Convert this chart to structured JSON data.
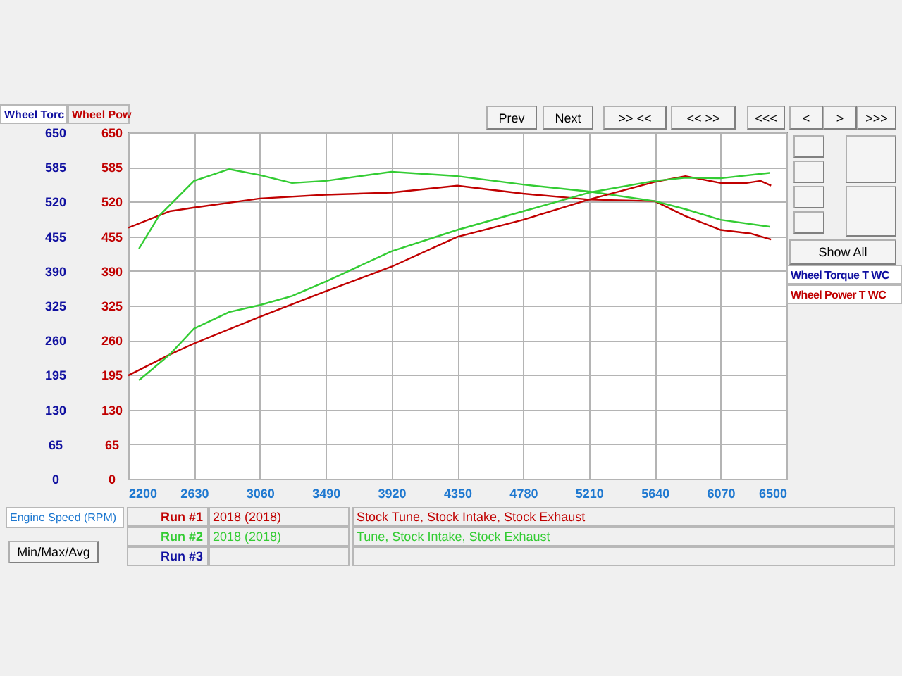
{
  "chart_data": {
    "type": "line",
    "xlabel": "Engine Speed (RPM)",
    "ylabel": "Wheel Torc",
    "y2label": "Wheel Pow",
    "xlim": [
      2200,
      6500
    ],
    "xticks": [
      2200,
      2630,
      3060,
      3490,
      3920,
      4350,
      4780,
      5210,
      5640,
      6070,
      6500
    ],
    "ylim": [
      0,
      650
    ],
    "yticks": [
      0,
      65,
      130,
      195,
      260,
      325,
      390,
      455,
      520,
      585,
      650
    ],
    "y2lim": [
      0,
      650
    ],
    "y2ticks": [
      0,
      65,
      130,
      195,
      260,
      325,
      390,
      455,
      520,
      585,
      650
    ],
    "grid": true,
    "legend": false,
    "marker": "none",
    "line_style": "solid",
    "series": [
      {
        "color": "#c00000",
        "axis": "y",
        "x": [
          2200,
          2470,
          2630,
          3060,
          3490,
          3920,
          4350,
          4780,
          5210,
          5640,
          5840,
          6070,
          6270,
          6400
        ],
        "values": [
          471,
          502,
          509,
          526,
          533,
          537,
          550,
          535,
          524,
          521,
          493,
          467,
          460,
          449
        ]
      },
      {
        "color": "#33cc33",
        "axis": "y",
        "x": [
          2270,
          2400,
          2630,
          2860,
          3060,
          3270,
          3490,
          3920,
          4350,
          4780,
          5210,
          5640,
          5840,
          6070,
          6390
        ],
        "values": [
          432,
          493,
          559,
          581,
          570,
          555,
          559,
          576,
          568,
          552,
          539,
          521,
          506,
          486,
          473
        ]
      },
      {
        "color": "#c00000",
        "axis": "y2",
        "x": [
          2200,
          2470,
          2630,
          3060,
          3490,
          3920,
          4350,
          4780,
          5210,
          5640,
          5840,
          6070,
          6240,
          6330,
          6400
        ],
        "values": [
          194,
          233,
          254,
          304,
          352,
          398,
          454,
          486,
          524,
          557,
          568,
          555,
          555,
          559,
          550
        ]
      },
      {
        "color": "#33cc33",
        "axis": "y2",
        "x": [
          2270,
          2470,
          2630,
          2860,
          3060,
          3270,
          3490,
          3920,
          4350,
          4780,
          5210,
          5640,
          5840,
          6070,
          6390
        ],
        "values": [
          185,
          233,
          282,
          313,
          326,
          343,
          370,
          427,
          467,
          502,
          537,
          559,
          565,
          564,
          574
        ]
      }
    ],
    "annotations": [
      "Prev",
      "Next",
      ">> <<",
      "<< >>",
      "<<<",
      "<",
      ">",
      ">>>",
      "Show All",
      "Wheel Torque T WC",
      "Wheel Power T WC",
      "Min/Max/Avg",
      "Run #1",
      "2018 (2018)",
      "Stock Tune, Stock Intake, Stock Exhaust",
      "Run #2",
      "2018 (2018)",
      "Tune, Stock Intake, Stock Exhaust",
      "Run #3"
    ]
  }
}
